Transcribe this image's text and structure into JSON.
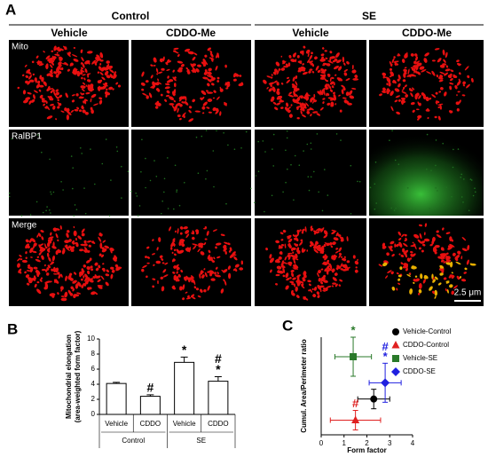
{
  "panel_labels": [
    "A",
    "B",
    "C"
  ],
  "panel_a": {
    "groups": [
      "Control",
      "SE"
    ],
    "columns": [
      "Vehicle",
      "CDDO-Me",
      "Vehicle",
      "CDDO-Me"
    ],
    "rows": [
      "Mito",
      "RalBP1",
      "Merge"
    ],
    "scale_bar": "2.5 μm"
  },
  "chart_data": [
    {
      "type": "bar",
      "ylabel": [
        "Mitochondrial elongation",
        "(area-weighted form factor)"
      ],
      "categories": [
        "Vehicle",
        "CDDO",
        "Vehicle",
        "CDDO"
      ],
      "groups": [
        "Control",
        "SE"
      ],
      "values": [
        4.1,
        2.4,
        6.9,
        4.4
      ],
      "errors": [
        0.15,
        0.2,
        0.7,
        0.6
      ],
      "markers": [
        null,
        [
          "#"
        ],
        [
          "*"
        ],
        [
          "#",
          "*"
        ]
      ],
      "color": "#ffffff",
      "ylim": [
        0,
        10
      ],
      "yticks": [
        0,
        2,
        4,
        6,
        8,
        10
      ]
    },
    {
      "type": "scatter",
      "xlabel": "Form factor",
      "ylabel": "Cumul. Area/Perimeter ratio",
      "xlim": [
        0,
        4
      ],
      "xticks": [
        0,
        1,
        2,
        3,
        4
      ],
      "ylim": [
        0,
        30
      ],
      "series": [
        {
          "name": "Vehicle-Control",
          "color": "#000000",
          "marker": "circle",
          "x": [
            2.3
          ],
          "values": [
            11
          ],
          "xerr": [
            0.7
          ],
          "yerr": [
            3
          ],
          "markers": []
        },
        {
          "name": "CDDO-Control",
          "color": "#e02020",
          "marker": "triangle",
          "x": [
            1.5
          ],
          "values": [
            4.5
          ],
          "xerr": [
            1.1
          ],
          "yerr": [
            3
          ],
          "markers": [
            "#"
          ]
        },
        {
          "name": "Vehicle-SE",
          "color": "#2a7a2a",
          "marker": "square",
          "x": [
            1.4
          ],
          "values": [
            24
          ],
          "xerr": [
            0.8
          ],
          "yerr": [
            6
          ],
          "markers": [
            "*"
          ]
        },
        {
          "name": "CDDO-SE",
          "color": "#2020e0",
          "marker": "diamond",
          "x": [
            2.8
          ],
          "values": [
            16
          ],
          "xerr": [
            0.7
          ],
          "yerr": [
            6
          ],
          "markers": [
            "#",
            "*"
          ]
        }
      ]
    }
  ]
}
